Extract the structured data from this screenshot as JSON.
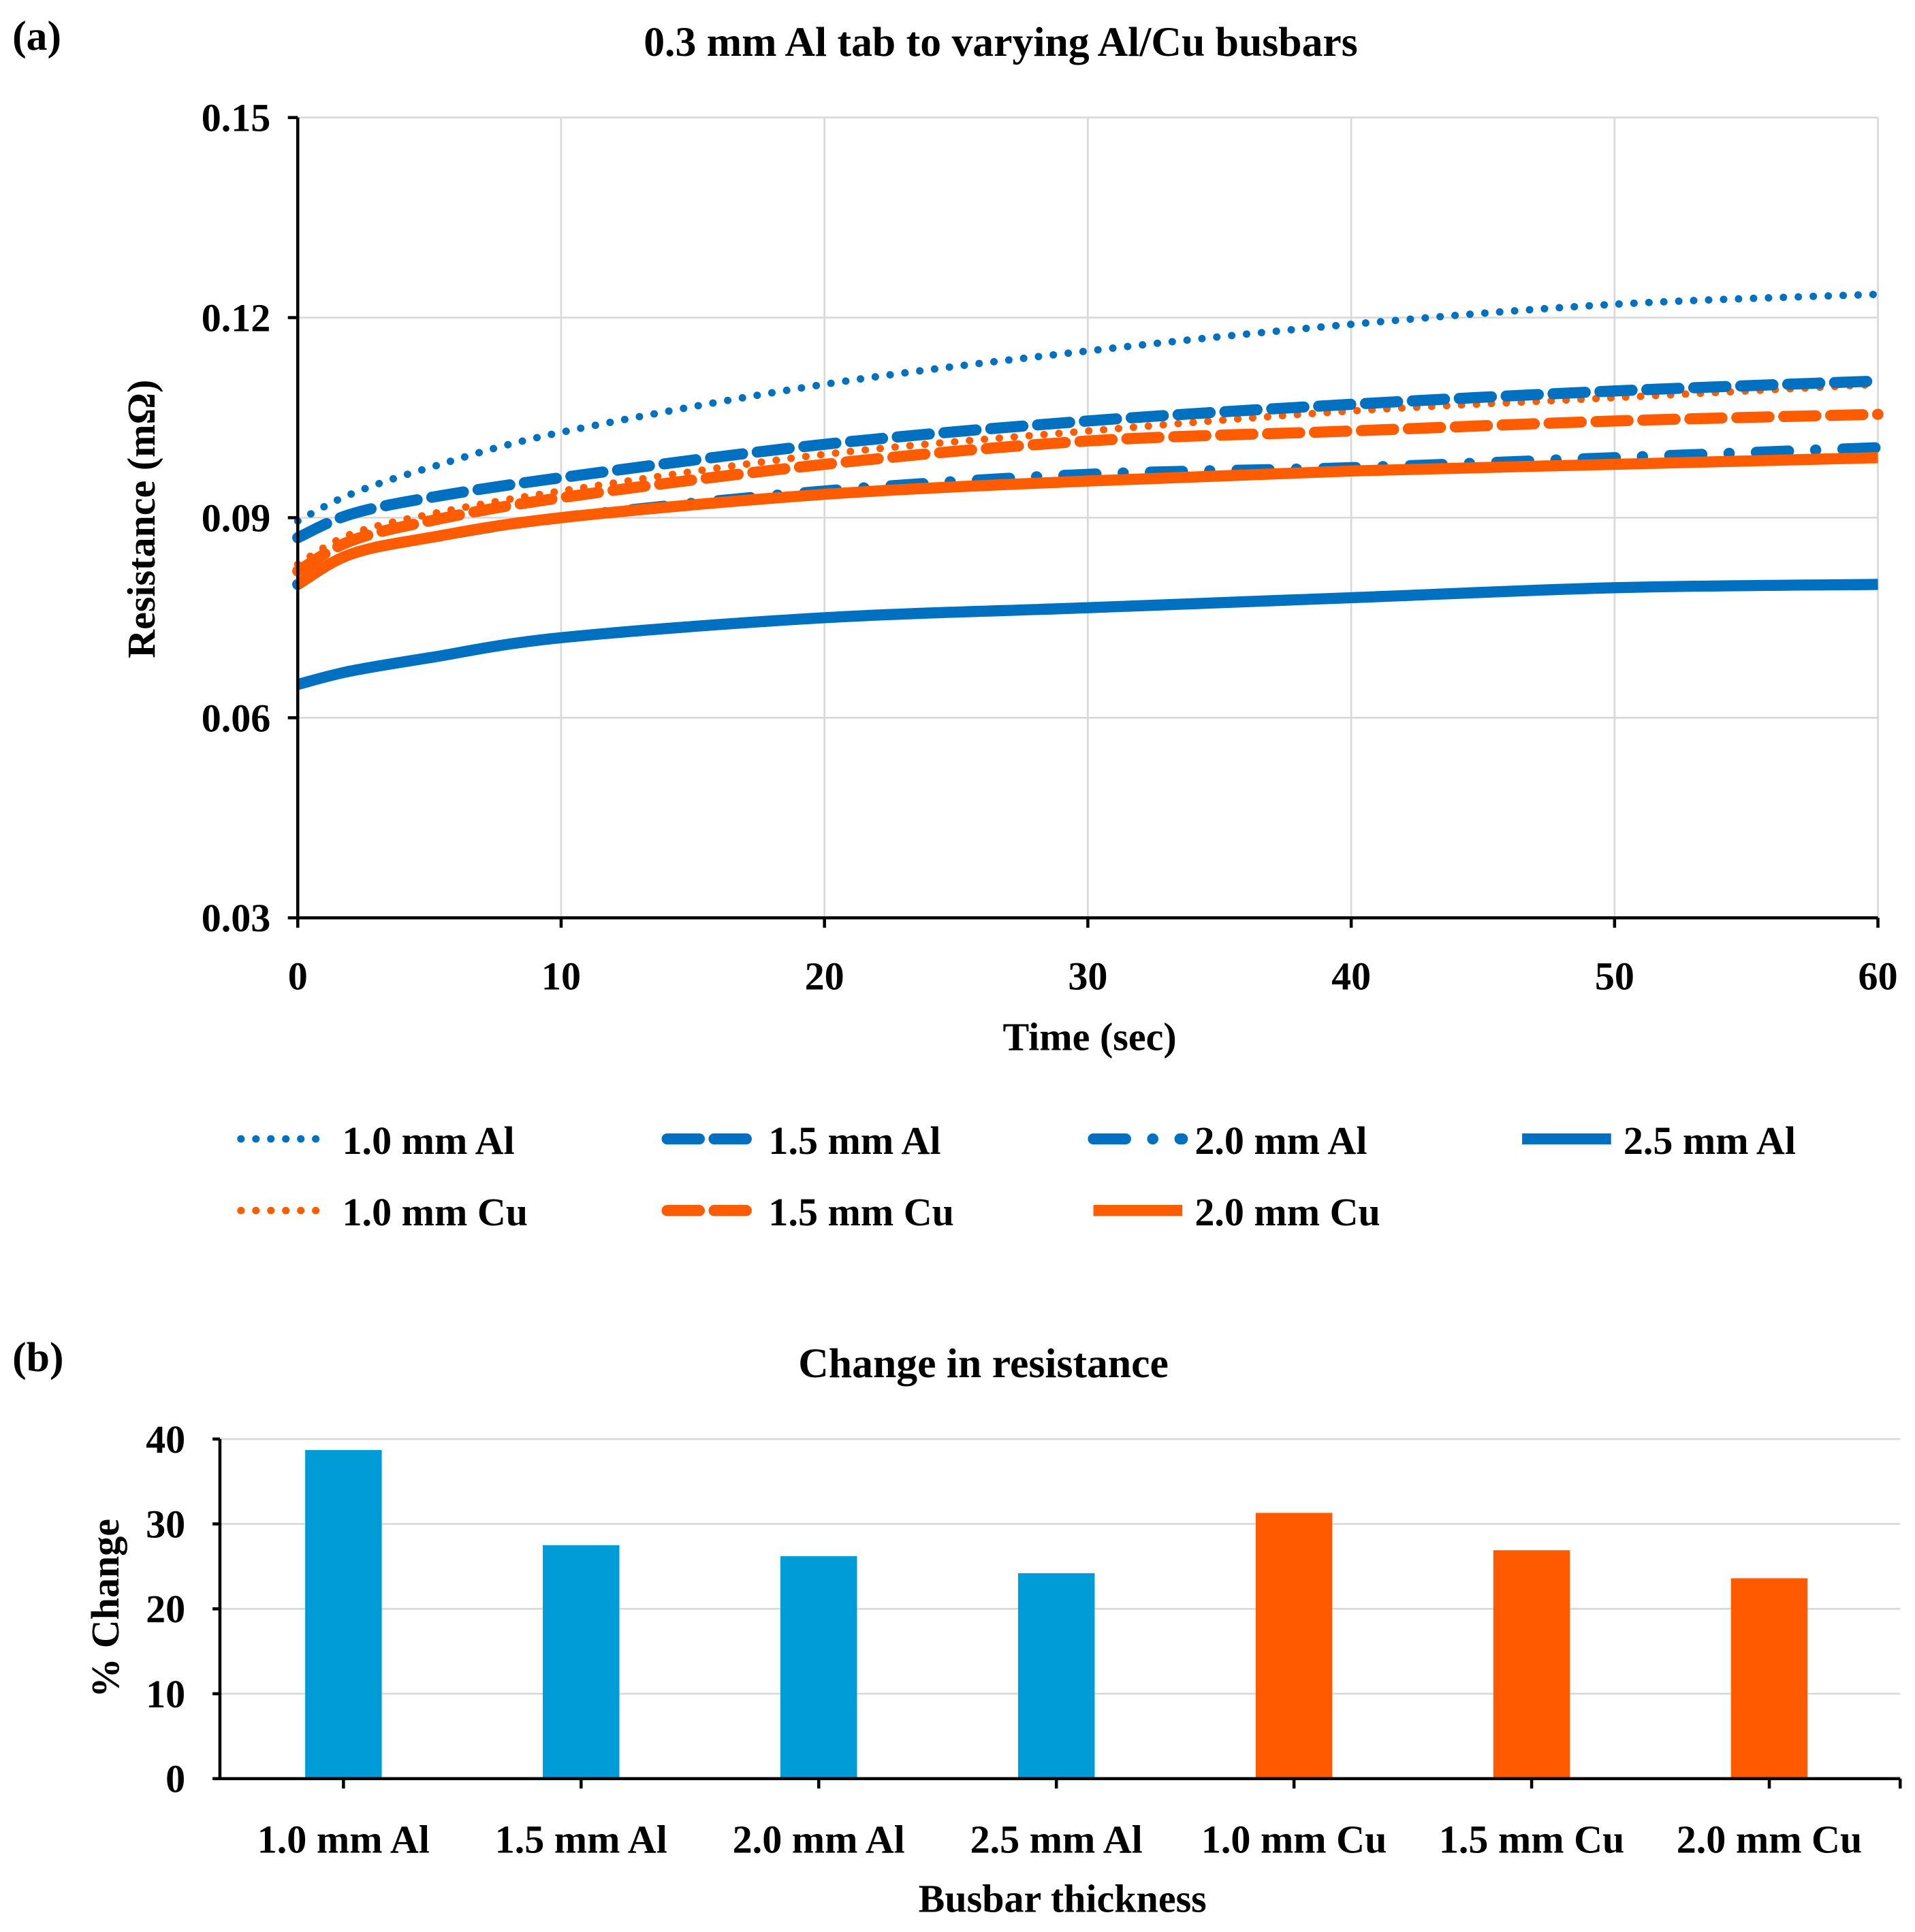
{
  "chart_data": [
    {
      "type": "line",
      "panel_label": "(a)",
      "title": "0.3 mm Al tab to varying Al/Cu busbars",
      "xlabel": "Time (sec)",
      "ylabel": "Resistance (mΩ)",
      "xlim": [
        0,
        60
      ],
      "ylim": [
        0.03,
        0.15
      ],
      "xticks": [
        "0",
        "10",
        "20",
        "30",
        "40",
        "50",
        "60"
      ],
      "yticks": [
        "0.03",
        "0.06",
        "0.09",
        "0.12",
        "0.15"
      ],
      "grid": true,
      "legend_position": "bottom",
      "x": [
        0,
        2,
        5,
        10,
        20,
        30,
        40,
        50,
        60
      ],
      "series": [
        {
          "name": "1.0 mm Al",
          "color": "#0070C0",
          "style": "dotted",
          "values": [
            0.0895,
            0.0935,
            0.0975,
            0.1028,
            0.11,
            0.115,
            0.119,
            0.122,
            0.1235
          ]
        },
        {
          "name": "1.5 mm Al",
          "color": "#0070C0",
          "style": "dash",
          "values": [
            0.087,
            0.0905,
            0.093,
            0.096,
            0.101,
            0.1045,
            0.107,
            0.109,
            0.1105
          ]
        },
        {
          "name": "2.0 mm Al",
          "color": "#0070C0",
          "style": "dash-dot",
          "values": [
            0.08,
            0.0845,
            0.087,
            0.09,
            0.094,
            0.0965,
            0.0975,
            0.099,
            0.1005
          ]
        },
        {
          "name": "2.5 mm Al",
          "color": "#0070C0",
          "style": "solid",
          "values": [
            0.065,
            0.067,
            0.069,
            0.072,
            0.075,
            0.0765,
            0.078,
            0.0795,
            0.08
          ]
        },
        {
          "name": "1.0 mm Cu",
          "color": "#FF5B00",
          "style": "dotted",
          "values": [
            0.083,
            0.0875,
            0.0905,
            0.094,
            0.0995,
            0.103,
            0.106,
            0.108,
            0.11
          ]
        },
        {
          "name": "1.5 mm Cu",
          "color": "#FF5B00",
          "style": "dash",
          "values": [
            0.082,
            0.0865,
            0.0895,
            0.093,
            0.098,
            0.1015,
            0.103,
            0.1045,
            0.1055
          ]
        },
        {
          "name": "2.0 mm Cu",
          "color": "#FF5B00",
          "style": "solid",
          "values": [
            0.08,
            0.0845,
            0.087,
            0.09,
            0.0935,
            0.0955,
            0.097,
            0.098,
            0.099
          ]
        }
      ]
    },
    {
      "type": "bar",
      "panel_label": "(b)",
      "title": "Change in resistance",
      "xlabel": "Busbar thickness",
      "ylabel": "% Change",
      "ylim": [
        0,
        40
      ],
      "yticks": [
        "0",
        "10",
        "20",
        "30",
        "40"
      ],
      "grid": true,
      "categories": [
        "1.0 mm Al",
        "1.5 mm Al",
        "2.0 mm Al",
        "2.5 mm Al",
        "1.0 mm Cu",
        "1.5 mm Cu",
        "2.0 mm Cu"
      ],
      "values": [
        38.7,
        27.5,
        26.2,
        24.2,
        31.3,
        26.9,
        23.6
      ],
      "colors": [
        "#009CD8",
        "#009CD8",
        "#009CD8",
        "#009CD8",
        "#FF5A00",
        "#FF5A00",
        "#FF5A00"
      ]
    }
  ]
}
